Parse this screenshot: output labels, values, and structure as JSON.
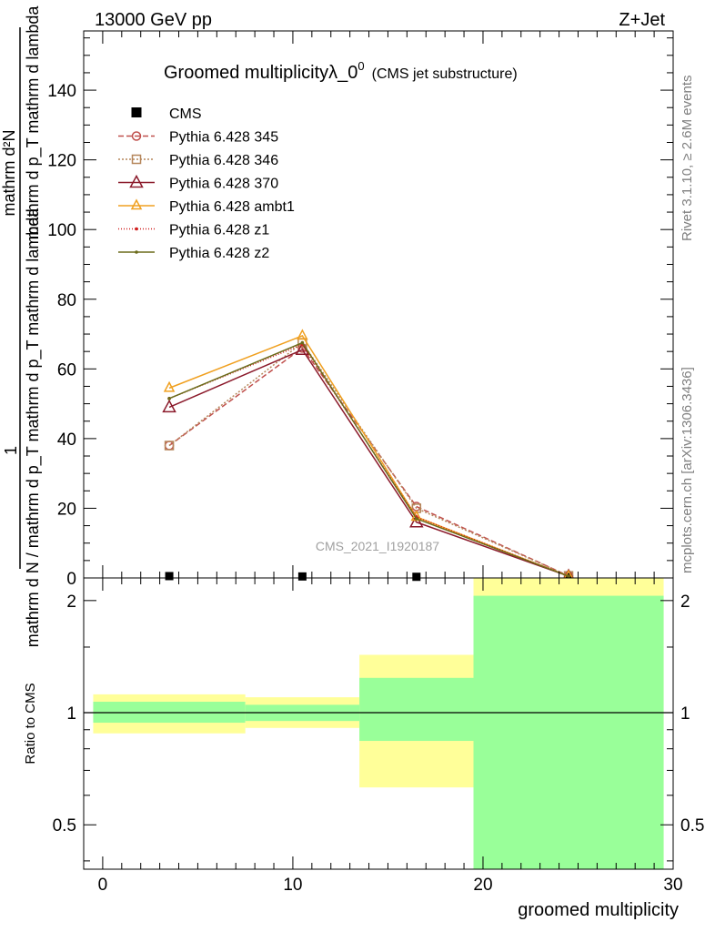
{
  "header": {
    "left": "13000 GeV pp",
    "right": "Z+Jet"
  },
  "side_labels": {
    "rivet": "Rivet 3.1.10, ≥ 2.6M events",
    "mcplots": "mcplots.cern.ch [arXiv:1306.3436]"
  },
  "chart_data": [
    {
      "type": "line",
      "title": "Groomed multiplicityλ_0",
      "title_sup": "0",
      "subtitle": "(CMS jet substructure)",
      "watermark": "CMS_2021_I1920187",
      "ylabel_top": "1",
      "ylabel_frac_num": "mathrm d²N",
      "ylabel_frac_den": "mathrm d p_T mathrm d lambda",
      "ylabel_main": "mathrm d N / mathrm d p_T mathrm d p_T mathrm d lambda",
      "xlim": [
        -1,
        30
      ],
      "ylim": [
        0,
        157
      ],
      "y_ticks": [
        0,
        20,
        40,
        60,
        80,
        100,
        120,
        140
      ],
      "x_ticks": [
        0,
        10,
        20,
        30
      ],
      "series": [
        {
          "name": "CMS",
          "color": "#000000",
          "marker": "square",
          "dash": "none",
          "x": [
            3.5,
            10.5,
            16.5,
            24.5
          ],
          "y": [
            0.4,
            0.3,
            0.2,
            0.1
          ]
        },
        {
          "name": "Pythia 6.428 345",
          "color": "#c0504d",
          "marker": "circle",
          "dash": "6,3",
          "x": [
            3.5,
            10.5,
            16.5,
            24.5
          ],
          "y": [
            38.0,
            66.0,
            20.5,
            0.6
          ]
        },
        {
          "name": "Pythia 6.428 346",
          "color": "#b5865a",
          "marker": "square-open",
          "dash": "2,2",
          "x": [
            3.5,
            10.5,
            16.5,
            24.5
          ],
          "y": [
            38.0,
            67.5,
            20.0,
            0.6
          ]
        },
        {
          "name": "Pythia 6.428 370",
          "color": "#8b1a2b",
          "marker": "triangle-open",
          "dash": "none",
          "x": [
            3.5,
            10.5,
            16.5,
            24.5
          ],
          "y": [
            49.0,
            65.5,
            16.0,
            0.5
          ]
        },
        {
          "name": "Pythia 6.428 ambt1",
          "color": "#f0a020",
          "marker": "triangle-small",
          "dash": "none",
          "x": [
            3.5,
            10.5,
            16.5,
            24.5
          ],
          "y": [
            54.5,
            69.5,
            17.5,
            0.5
          ]
        },
        {
          "name": "Pythia 6.428 z1",
          "color": "#d02020",
          "marker": "dot",
          "dash": "1,2",
          "x": [
            3.5,
            10.5,
            16.5,
            24.5
          ],
          "y": [
            51.5,
            67.0,
            17.5,
            0.5
          ]
        },
        {
          "name": "Pythia 6.428 z2",
          "color": "#6b6b1a",
          "marker": "dot",
          "dash": "none",
          "x": [
            3.5,
            10.5,
            16.5,
            24.5
          ],
          "y": [
            51.5,
            67.5,
            17.0,
            0.5
          ]
        }
      ]
    },
    {
      "type": "area",
      "xlabel": "groomed multiplicity",
      "ylabel": "Ratio to CMS",
      "yscale": "log",
      "xlim": [
        -1,
        30
      ],
      "ylim": [
        0.38,
        2.3
      ],
      "y_ticks": [
        0.5,
        1,
        2
      ],
      "y_tick_labels": [
        "0.5",
        "1",
        "2"
      ],
      "x_ticks": [
        0,
        10,
        20,
        30
      ],
      "x_tick_labels": [
        "0",
        "10",
        "20",
        "30"
      ],
      "reference_line": 1,
      "bands": [
        {
          "x_range": [
            -0.5,
            7.5
          ],
          "inner": [
            0.94,
            1.07
          ],
          "outer": [
            0.88,
            1.12
          ]
        },
        {
          "x_range": [
            7.5,
            13.5
          ],
          "inner": [
            0.95,
            1.05
          ],
          "outer": [
            0.91,
            1.1
          ]
        },
        {
          "x_range": [
            13.5,
            19.5
          ],
          "inner": [
            0.84,
            1.24
          ],
          "outer": [
            0.63,
            1.43
          ]
        },
        {
          "x_range": [
            19.5,
            29.5
          ],
          "inner": [
            0.33,
            2.06
          ],
          "outer": [
            0.33,
            2.5
          ]
        }
      ],
      "band_colors": {
        "inner": "#99ff99",
        "outer": "#ffff99"
      }
    }
  ]
}
